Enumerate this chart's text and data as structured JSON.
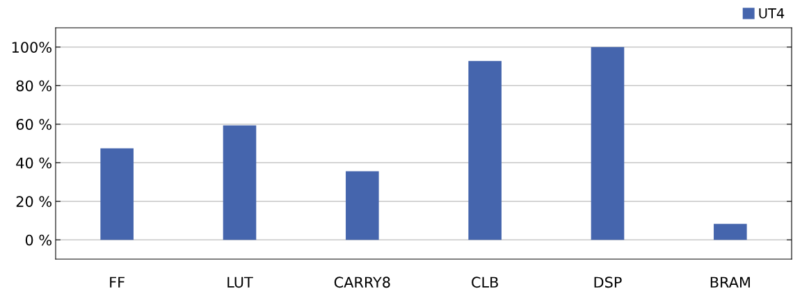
{
  "chart_data": {
    "type": "bar",
    "categories": [
      "FF",
      "LUT",
      "CARRY8",
      "CLB",
      "DSP",
      "BRAM"
    ],
    "series": [
      {
        "name": "UT4",
        "color": "#4565ad",
        "values": [
          47.5,
          59.4,
          35.6,
          92.8,
          100,
          8.3
        ]
      }
    ],
    "ylim": [
      -10,
      110
    ],
    "yticks": [
      {
        "value": 0,
        "label": "0 %"
      },
      {
        "value": 20,
        "label": "20 %"
      },
      {
        "value": 40,
        "label": "40 %"
      },
      {
        "value": 60,
        "label": "60 %"
      },
      {
        "value": 80,
        "label": "80 %"
      },
      {
        "value": 100,
        "label": "100%"
      }
    ],
    "grid": "y",
    "legend": "top right"
  }
}
